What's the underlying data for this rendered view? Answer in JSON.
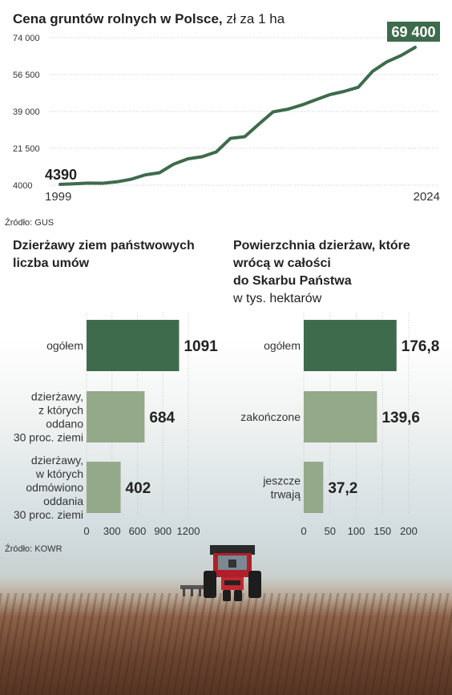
{
  "colors": {
    "line": "#3d6b4c",
    "bar_dark": "#3f6b4d",
    "bar_light": "#94a989",
    "highlight_bg": "#3d6b4c",
    "highlight_text": "#ffffff"
  },
  "chart_data": [
    {
      "type": "line",
      "title": "Cena gruntów rolnych w Polsce,",
      "subtitle": "zł za 1 ha",
      "x": [
        1999,
        2000,
        2001,
        2002,
        2003,
        2004,
        2005,
        2006,
        2007,
        2008,
        2009,
        2010,
        2011,
        2012,
        2013,
        2014,
        2015,
        2016,
        2017,
        2018,
        2019,
        2020,
        2021,
        2022,
        2023,
        2024
      ],
      "values": [
        4390,
        4650,
        4980,
        4900,
        5600,
        6800,
        8900,
        9900,
        14000,
        16500,
        17500,
        19800,
        26200,
        27000,
        33000,
        38800,
        40000,
        42000,
        44500,
        47000,
        48500,
        50500,
        58000,
        62500,
        65500,
        69400
      ],
      "yticks": [
        "74 000",
        "56 500",
        "39 000",
        "21 500",
        "4000"
      ],
      "ylim": [
        4000,
        74000
      ],
      "xtick_labels": [
        "1999",
        "2024"
      ],
      "start_label": "4390",
      "end_label": "69 400",
      "source": "Źródło: GUS"
    },
    {
      "type": "bar",
      "orientation": "horizontal",
      "title": [
        "Dzierżawy ziem państwowych",
        "liczba umów"
      ],
      "categories": [
        [
          "ogółem"
        ],
        [
          "dzierżawy,",
          "z których",
          "oddano",
          "30 proc. ziemi"
        ],
        [
          "dzierżawy,",
          "w których",
          "odmówiono",
          "oddania",
          "30 proc. ziemi"
        ]
      ],
      "values": [
        1091,
        684,
        402
      ],
      "value_labels": [
        "1091",
        "684",
        "402"
      ],
      "xticks": [
        "0",
        "300",
        "600",
        "900",
        "1200"
      ],
      "xlim": [
        0,
        1200
      ],
      "source": "Źródło: KOWR"
    },
    {
      "type": "bar",
      "orientation": "horizontal",
      "title": [
        "Powierzchnia dzierżaw, które",
        "wrócą w całości",
        "do Skarbu Państwa"
      ],
      "subtitle": "w tys. hektarów",
      "categories": [
        [
          "ogółem"
        ],
        [
          "zakończone"
        ],
        [
          "jeszcze",
          "trwają"
        ]
      ],
      "values": [
        176.8,
        139.6,
        37.2
      ],
      "value_labels": [
        "176,8",
        "139,6",
        "37,2"
      ],
      "xticks": [
        "0",
        "50",
        "100",
        "150",
        "200"
      ],
      "xlim": [
        0,
        200
      ]
    }
  ]
}
